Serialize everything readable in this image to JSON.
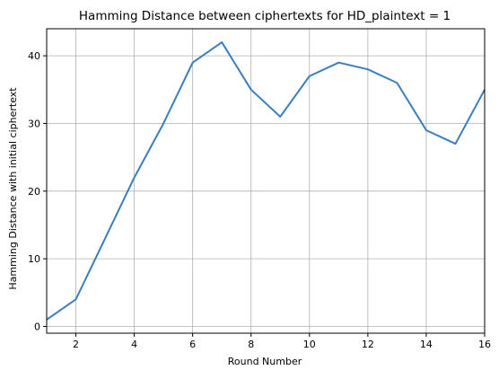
{
  "chart_data": {
    "type": "line",
    "title": "Hamming Distance between ciphertexts for HD_plaintext = 1",
    "xlabel": "Round Number",
    "ylabel": "Hamming Distance with initial ciphertext",
    "xlim": [
      1,
      16
    ],
    "ylim": [
      -1,
      44
    ],
    "xticks": [
      2,
      4,
      6,
      8,
      10,
      12,
      14,
      16
    ],
    "yticks": [
      0,
      10,
      20,
      30,
      40
    ],
    "grid": true,
    "series": [
      {
        "x": [
          1,
          2,
          3,
          4,
          5,
          6,
          7,
          8,
          9,
          10,
          11,
          12,
          13,
          14,
          15,
          16
        ],
        "values": [
          1,
          4,
          13,
          22,
          30,
          39,
          42,
          35,
          31,
          37,
          39,
          38,
          36,
          29,
          27,
          35
        ],
        "color": "#3a7ebf"
      }
    ]
  }
}
